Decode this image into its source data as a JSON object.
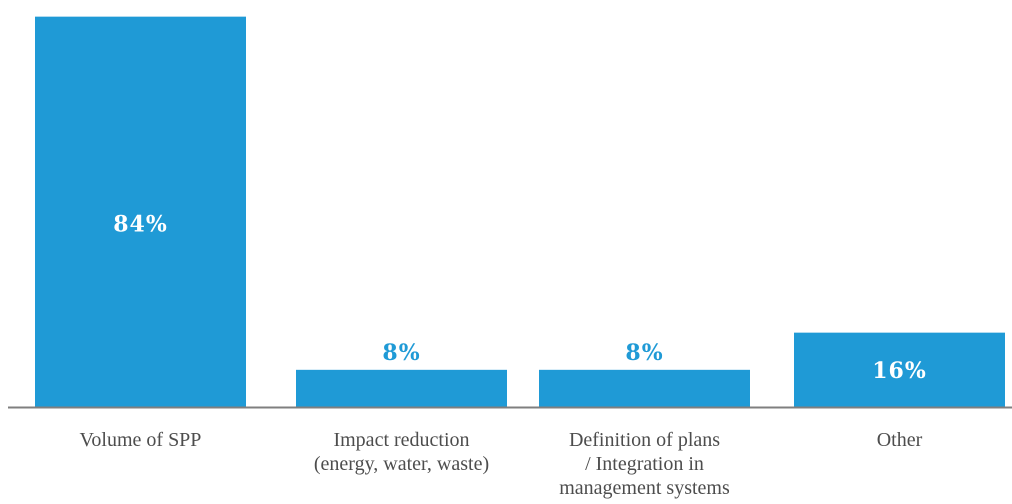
{
  "chart_data": {
    "type": "bar",
    "categories": [
      [
        "Volume of SPP"
      ],
      [
        "Impact reduction",
        "(energy, water, waste)"
      ],
      [
        "Definition of plans",
        "/ Integration in",
        "management systems"
      ],
      [
        "Other"
      ]
    ],
    "values": [
      84,
      8,
      8,
      16
    ],
    "value_labels": [
      "84%",
      "8%",
      "8%",
      "16%"
    ],
    "ylim": [
      0,
      85
    ],
    "grid": false,
    "legend": "none"
  },
  "colors": {
    "bar": "#1f9ad6",
    "label_inside": "#ffffff",
    "label_outside": "#1f9ad6",
    "axis": "#7f7f7f",
    "category_text": "#4d4d4d"
  }
}
